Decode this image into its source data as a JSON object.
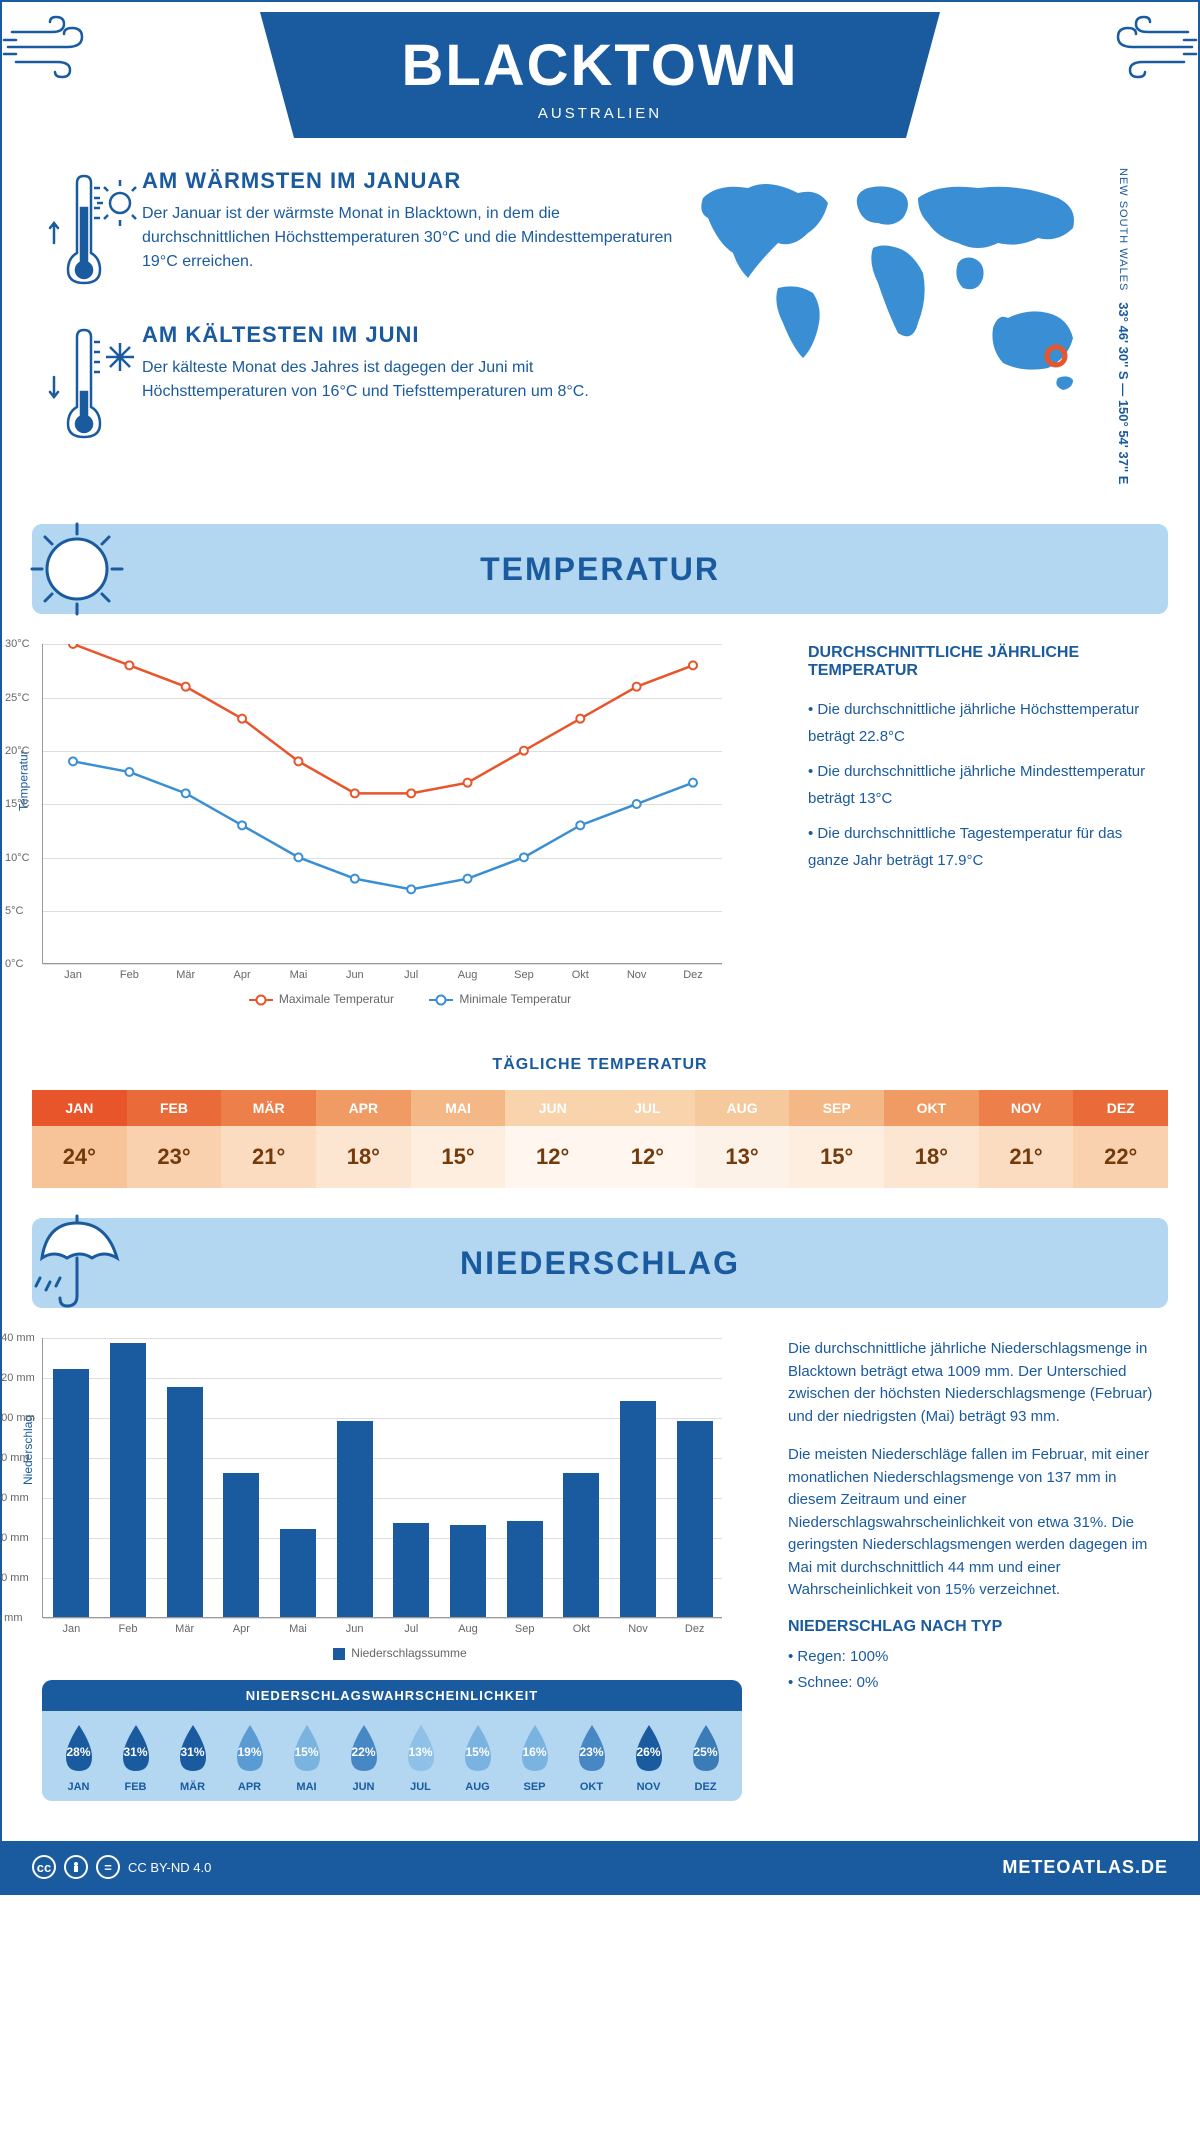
{
  "header": {
    "title": "BLACKTOWN",
    "subtitle": "AUSTRALIEN"
  },
  "coords": {
    "lat": "33° 46' 30'' S",
    "lon": "150° 54' 37'' E",
    "region": "NEW SOUTH WALES"
  },
  "intro": {
    "warm": {
      "heading": "AM WÄRMSTEN IM JANUAR",
      "text": "Der Januar ist der wärmste Monat in Blacktown, in dem die durchschnittlichen Höchsttemperaturen 30°C und die Mindesttemperaturen 19°C erreichen."
    },
    "cold": {
      "heading": "AM KÄLTESTEN IM JUNI",
      "text": "Der kälteste Monat des Jahres ist dagegen der Juni mit Höchsttemperaturen von 16°C und Tiefsttemperaturen um 8°C."
    }
  },
  "temp_section": {
    "title": "TEMPERATUR",
    "chart": {
      "type": "line",
      "months": [
        "Jan",
        "Feb",
        "Mär",
        "Apr",
        "Mai",
        "Jun",
        "Jul",
        "Aug",
        "Sep",
        "Okt",
        "Nov",
        "Dez"
      ],
      "max_series": [
        30,
        28,
        26,
        23,
        19,
        16,
        16,
        17,
        20,
        23,
        26,
        28
      ],
      "min_series": [
        19,
        18,
        16,
        13,
        10,
        8,
        7,
        8,
        10,
        13,
        15,
        17
      ],
      "max_color": "#e8552b",
      "min_color": "#3a8fd4",
      "y_label": "Temperatur",
      "y_min": 0,
      "y_max": 30,
      "y_step": 5,
      "grid_color": "#dddddd",
      "legend_max": "Maximale Temperatur",
      "legend_min": "Minimale Temperatur"
    },
    "side": {
      "heading": "DURCHSCHNITTLICHE JÄHRLICHE TEMPERATUR",
      "bullets": [
        "• Die durchschnittliche jährliche Höchsttemperatur beträgt 22.8°C",
        "• Die durchschnittliche jährliche Mindesttemperatur beträgt 13°C",
        "• Die durchschnittliche Tagestemperatur für das ganze Jahr beträgt 17.9°C"
      ]
    },
    "daily": {
      "heading": "TÄGLICHE TEMPERATUR",
      "months": [
        "JAN",
        "FEB",
        "MÄR",
        "APR",
        "MAI",
        "JUN",
        "JUL",
        "AUG",
        "SEP",
        "OKT",
        "NOV",
        "DEZ"
      ],
      "values": [
        "24°",
        "23°",
        "21°",
        "18°",
        "15°",
        "12°",
        "12°",
        "13°",
        "15°",
        "18°",
        "21°",
        "22°"
      ],
      "head_colors": [
        "#e8552b",
        "#ea6b3a",
        "#ec7f4a",
        "#f09b63",
        "#f4b887",
        "#f8d3ab",
        "#f8d3ab",
        "#f6c99c",
        "#f4b887",
        "#f09b63",
        "#ec7f4a",
        "#ea6b3a"
      ],
      "cell_colors": [
        "#f7c49a",
        "#f9d1ae",
        "#fbdcc0",
        "#fce6d2",
        "#fdeee0",
        "#fef6ef",
        "#fef6ef",
        "#fdf2e7",
        "#fdeee0",
        "#fce6d2",
        "#fbdcc0",
        "#f9d1ae"
      ]
    }
  },
  "precip_section": {
    "title": "NIEDERSCHLAG",
    "chart": {
      "type": "bar",
      "months": [
        "Jan",
        "Feb",
        "Mär",
        "Apr",
        "Mai",
        "Jun",
        "Jul",
        "Aug",
        "Sep",
        "Okt",
        "Nov",
        "Dez"
      ],
      "values": [
        124,
        137,
        115,
        72,
        44,
        98,
        47,
        46,
        48,
        72,
        108,
        98
      ],
      "bar_color": "#1a5a9e",
      "y_label": "Niederschlag",
      "y_min": 0,
      "y_max": 140,
      "y_step": 20,
      "grid_color": "#dddddd",
      "legend": "Niederschlagssumme"
    },
    "side": {
      "para1": "Die durchschnittliche jährliche Niederschlagsmenge in Blacktown beträgt etwa 1009 mm. Der Unterschied zwischen der höchsten Niederschlagsmenge (Februar) und der niedrigsten (Mai) beträgt 93 mm.",
      "para2": "Die meisten Niederschläge fallen im Februar, mit einer monatlichen Niederschlagsmenge von 137 mm in diesem Zeitraum und einer Niederschlagswahrscheinlichkeit von etwa 31%. Die geringsten Niederschlagsmengen werden dagegen im Mai mit durchschnittlich 44 mm und einer Wahrscheinlichkeit von 15% verzeichnet.",
      "type_heading": "NIEDERSCHLAG NACH TYP",
      "types": [
        "• Regen: 100%",
        "• Schnee: 0%"
      ]
    },
    "probability": {
      "heading": "NIEDERSCHLAGSWAHRSCHEINLICHKEIT",
      "months": [
        "JAN",
        "FEB",
        "MÄR",
        "APR",
        "MAI",
        "JUN",
        "JUL",
        "AUG",
        "SEP",
        "OKT",
        "NOV",
        "DEZ"
      ],
      "values": [
        "28%",
        "31%",
        "31%",
        "19%",
        "15%",
        "22%",
        "13%",
        "15%",
        "16%",
        "23%",
        "26%",
        "25%"
      ],
      "raw": [
        28,
        31,
        31,
        19,
        15,
        22,
        13,
        15,
        16,
        23,
        26,
        25
      ],
      "drop_colors": [
        "#1a5a9e",
        "#1a5a9e",
        "#1a5a9e",
        "#5a9bd4",
        "#7bb3e0",
        "#4788c4",
        "#8fc1e8",
        "#7bb3e0",
        "#7bb3e0",
        "#4788c4",
        "#1a5a9e",
        "#3a7bb8"
      ]
    }
  },
  "footer": {
    "license": "CC BY-ND 4.0",
    "brand": "METEOATLAS.DE"
  },
  "colors": {
    "primary": "#1a5a9e",
    "light_blue": "#b3d7f0",
    "orange": "#e8552b",
    "background": "#ffffff"
  }
}
